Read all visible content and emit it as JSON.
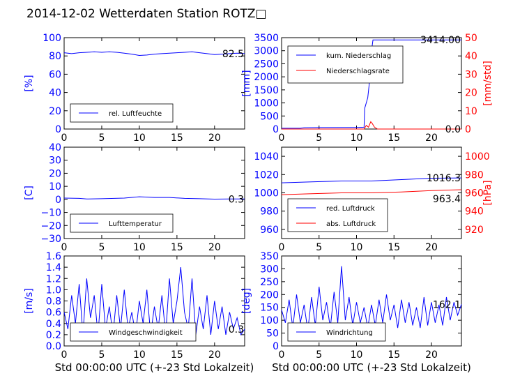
{
  "figure": {
    "title": "2014-12-02 Wetterdaten Station ROTZ□"
  },
  "xaxis": {
    "label": "Std 00:00:00 UTC (+-23 Std Lokalzeit)",
    "ticks": [
      0,
      5,
      10,
      15,
      20
    ],
    "range": [
      0,
      24
    ]
  },
  "colors": {
    "blue": "#0000ff",
    "red": "#ff0000",
    "black": "#000000"
  },
  "chart_data": [
    {
      "id": "humidity",
      "type": "line",
      "ylabel": "[%]",
      "ylim": [
        0,
        100
      ],
      "yticks": [
        0,
        20,
        40,
        60,
        80,
        100
      ],
      "legend": {
        "position": "bottom-left",
        "entries": [
          "rel. Luftfeuchte"
        ]
      },
      "last_value_label": "82.5",
      "series": [
        {
          "name": "rel. Luftfeuchte",
          "axis": "left",
          "color": "blue",
          "x": [
            0,
            0.5,
            1,
            2,
            3,
            4,
            5,
            6,
            7,
            8,
            9,
            10,
            11,
            12,
            13,
            14,
            15,
            16,
            17,
            18,
            19,
            20,
            21,
            22,
            23,
            24
          ],
          "y": [
            83.5,
            83,
            82.5,
            83.5,
            84,
            84.5,
            84,
            84.5,
            84,
            83,
            82,
            80.5,
            81,
            82,
            82.5,
            83,
            83.5,
            84,
            84.5,
            83.5,
            82.5,
            81.5,
            82,
            82.5,
            83,
            82.5
          ]
        }
      ]
    },
    {
      "id": "precip",
      "type": "line",
      "ylabel": "[mm]",
      "ylim": [
        0,
        3500
      ],
      "yticks": [
        0,
        500,
        1000,
        1500,
        2000,
        2500,
        3000,
        3500
      ],
      "y2label": "[mm/std]",
      "y2lim": [
        0,
        50
      ],
      "y2ticks": [
        0,
        10,
        20,
        30,
        40,
        50
      ],
      "legend": {
        "position": "top-left",
        "entries": [
          "kum. Niederschlag",
          "Niederschlagsrate"
        ]
      },
      "last_value_label": "3414.00",
      "last_value_label_2": "0.0",
      "series": [
        {
          "name": "kum. Niederschlag",
          "axis": "left",
          "color": "blue",
          "x": [
            0,
            2.5,
            3,
            5,
            10,
            11,
            11.1,
            11.5,
            11.8,
            12,
            12.2,
            24
          ],
          "y": [
            30,
            30,
            50,
            55,
            60,
            70,
            800,
            1200,
            2000,
            3000,
            3414,
            3414
          ]
        },
        {
          "name": "Niederschlagsrate",
          "axis": "right",
          "color": "red",
          "x": [
            0,
            11,
            11.3,
            11.6,
            11.9,
            12.1,
            12.4,
            12.8,
            24
          ],
          "y": [
            0,
            0,
            2,
            1,
            4,
            3,
            1,
            0,
            0
          ]
        }
      ]
    },
    {
      "id": "temperature",
      "type": "line",
      "ylabel": "[C]",
      "ylim": [
        -30,
        40
      ],
      "yticks": [
        -30,
        -20,
        -10,
        0,
        10,
        20,
        30,
        40
      ],
      "legend": {
        "position": "bottom-left",
        "entries": [
          "Lufttemperatur"
        ]
      },
      "last_value_label": "0.3",
      "series": [
        {
          "name": "Lufttemperatur",
          "axis": "left",
          "color": "blue",
          "x": [
            0,
            2,
            3,
            5,
            8,
            10,
            12,
            14,
            16,
            18,
            20,
            22,
            24
          ],
          "y": [
            1,
            0.8,
            0.3,
            0.5,
            1,
            2,
            1.5,
            1.5,
            0.8,
            0.5,
            0.2,
            0.3,
            0.3
          ]
        }
      ]
    },
    {
      "id": "pressure",
      "type": "line",
      "ylabel": "",
      "ylim": [
        950,
        1050
      ],
      "yticks": [
        960,
        980,
        1000,
        1020,
        1040
      ],
      "y2label": "[hPa]",
      "y2lim": [
        910,
        1010
      ],
      "y2ticks": [
        920,
        940,
        960,
        980,
        1000
      ],
      "legend": {
        "position": "bottom-left",
        "entries": [
          "red. Luftdruck",
          "abs. Luftdruck"
        ]
      },
      "last_value_label": "1016.3",
      "last_value_label_2": "963.4",
      "series": [
        {
          "name": "red. Luftdruck",
          "axis": "left",
          "color": "blue",
          "x": [
            0,
            4,
            8,
            12,
            16,
            20,
            24
          ],
          "y": [
            1011,
            1012,
            1013,
            1013,
            1014.5,
            1016,
            1016.3
          ]
        },
        {
          "name": "abs. Luftdruck",
          "axis": "right",
          "color": "red",
          "x": [
            0,
            4,
            8,
            12,
            16,
            20,
            24
          ],
          "y": [
            958,
            959,
            960,
            960,
            961,
            962.5,
            963.4
          ]
        }
      ]
    },
    {
      "id": "wind_speed",
      "type": "line",
      "ylabel": "[m/s]",
      "ylim": [
        0,
        1.6
      ],
      "yticks": [
        0,
        0.2,
        0.4,
        0.6,
        0.8,
        1,
        1.2,
        1.4,
        1.6
      ],
      "legend": {
        "position": "bottom-left",
        "entries": [
          "Windgeschwindigkeit"
        ]
      },
      "last_value_label": "0.3",
      "series": [
        {
          "name": "Windgeschwindigkeit",
          "axis": "left",
          "color": "blue",
          "x": [
            0,
            0.5,
            1,
            1.5,
            2,
            2.5,
            3,
            3.5,
            4,
            4.5,
            5,
            5.5,
            6,
            6.5,
            7,
            7.5,
            8,
            8.5,
            9,
            9.5,
            10,
            10.5,
            11,
            11.5,
            12,
            12.5,
            13,
            13.5,
            14,
            14.5,
            15,
            15.5,
            16,
            16.5,
            17,
            17.5,
            18,
            18.5,
            19,
            19.5,
            20,
            20.5,
            21,
            21.5,
            22,
            22.5,
            23,
            23.5,
            24
          ],
          "y": [
            0.6,
            0.3,
            0.9,
            0.4,
            1.1,
            0.2,
            1.2,
            0.5,
            0.9,
            0.2,
            1.1,
            0.3,
            0.7,
            0.2,
            0.9,
            0.3,
            1.0,
            0.3,
            0.6,
            0.2,
            0.8,
            0.4,
            1.0,
            0.2,
            0.7,
            0.3,
            0.9,
            0.2,
            1.2,
            0.4,
            0.8,
            1.4,
            0.6,
            0.3,
            1.2,
            0.2,
            0.7,
            0.3,
            0.9,
            0.2,
            0.8,
            0.3,
            0.7,
            0.2,
            0.6,
            0.3,
            0.5,
            0.2,
            0.3
          ]
        }
      ]
    },
    {
      "id": "wind_dir",
      "type": "line",
      "ylabel": "[deg]",
      "ylim": [
        0,
        350
      ],
      "yticks": [
        0,
        50,
        100,
        150,
        200,
        250,
        300,
        350
      ],
      "legend": {
        "position": "bottom-left",
        "entries": [
          "Windrichtung"
        ]
      },
      "last_value_label": "162.1",
      "series": [
        {
          "name": "Windrichtung",
          "axis": "left",
          "color": "blue",
          "x": [
            0,
            0.5,
            1,
            1.5,
            2,
            2.5,
            3,
            3.5,
            4,
            4.5,
            5,
            5.5,
            6,
            6.5,
            7,
            7.5,
            8,
            8.5,
            9,
            9.5,
            10,
            10.5,
            11,
            11.5,
            12,
            12.5,
            13,
            13.5,
            14,
            14.5,
            15,
            15.5,
            16,
            16.5,
            17,
            17.5,
            18,
            18.5,
            19,
            19.5,
            20,
            20.5,
            21,
            21.5,
            22,
            22.5,
            23,
            23.5,
            24
          ],
          "y": [
            140,
            90,
            180,
            70,
            200,
            90,
            160,
            60,
            190,
            80,
            230,
            100,
            170,
            70,
            210,
            90,
            310,
            100,
            190,
            80,
            170,
            90,
            150,
            70,
            160,
            80,
            180,
            90,
            200,
            100,
            160,
            70,
            180,
            90,
            170,
            80,
            150,
            70,
            190,
            80,
            170,
            90,
            160,
            80,
            190,
            100,
            170,
            120,
            162
          ]
        }
      ]
    }
  ]
}
